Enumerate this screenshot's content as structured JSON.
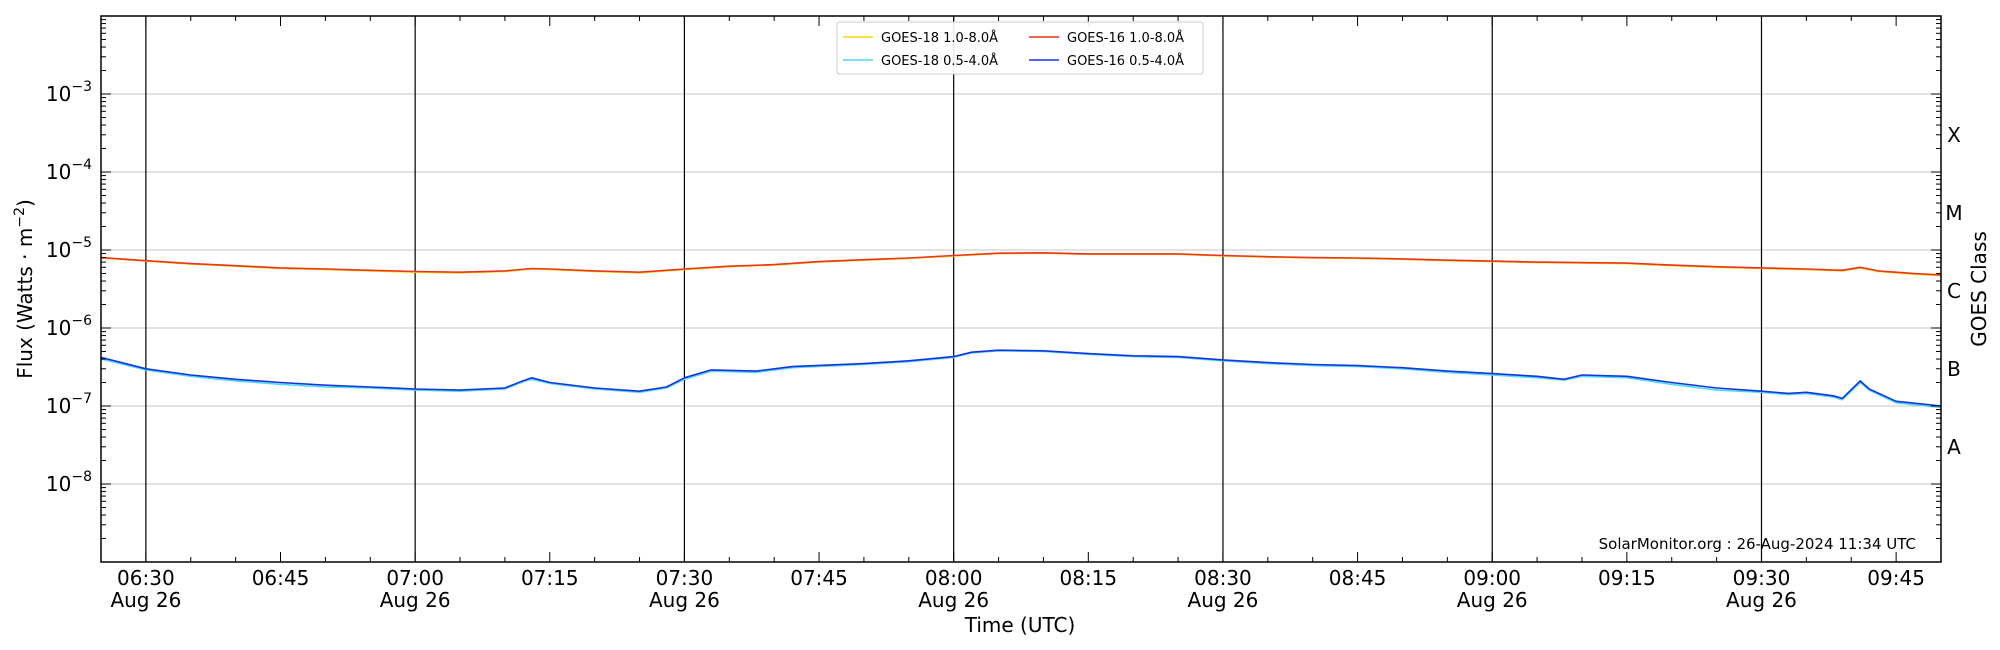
{
  "chart_data": {
    "type": "line",
    "xlabel": "Time (UTC)",
    "ylabel": "Flux (Watts · m",
    "ylabel_sup": "−2",
    "ylabel_close": ")",
    "right_label": "GOES Class",
    "y_scale": "log",
    "ylim": [
      1e-09,
      0.01
    ],
    "xlim": [
      "06:25",
      "09:50"
    ],
    "grid": "horizontal at decades; vertical lines at half-hours",
    "x_ticks": [
      {
        "time": "06:30",
        "label": "06:30",
        "sub": "Aug 26"
      },
      {
        "time": "06:45",
        "label": "06:45",
        "sub": ""
      },
      {
        "time": "07:00",
        "label": "07:00",
        "sub": "Aug 26"
      },
      {
        "time": "07:15",
        "label": "07:15",
        "sub": ""
      },
      {
        "time": "07:30",
        "label": "07:30",
        "sub": "Aug 26"
      },
      {
        "time": "07:45",
        "label": "07:45",
        "sub": ""
      },
      {
        "time": "08:00",
        "label": "08:00",
        "sub": "Aug 26"
      },
      {
        "time": "08:15",
        "label": "08:15",
        "sub": ""
      },
      {
        "time": "08:30",
        "label": "08:30",
        "sub": "Aug 26"
      },
      {
        "time": "08:45",
        "label": "08:45",
        "sub": ""
      },
      {
        "time": "09:00",
        "label": "09:00",
        "sub": "Aug 26"
      },
      {
        "time": "09:15",
        "label": "09:15",
        "sub": ""
      },
      {
        "time": "09:30",
        "label": "09:30",
        "sub": "Aug 26"
      },
      {
        "time": "09:45",
        "label": "09:45",
        "sub": ""
      }
    ],
    "vlines": [
      "06:30",
      "07:00",
      "07:30",
      "08:00",
      "08:30",
      "09:00",
      "09:30"
    ],
    "y_ticks": [
      {
        "value": 1e-08,
        "base": "10",
        "exp": "−8"
      },
      {
        "value": 1e-07,
        "base": "10",
        "exp": "−7"
      },
      {
        "value": 1e-06,
        "base": "10",
        "exp": "−6"
      },
      {
        "value": 1e-05,
        "base": "10",
        "exp": "−5"
      },
      {
        "value": 0.0001,
        "base": "10",
        "exp": "−4"
      },
      {
        "value": 0.001,
        "base": "10",
        "exp": "−3"
      }
    ],
    "goes_classes": [
      {
        "label": "A",
        "value": 3e-08
      },
      {
        "label": "B",
        "value": 3e-07
      },
      {
        "label": "C",
        "value": 3e-06
      },
      {
        "label": "M",
        "value": 3e-05
      },
      {
        "label": "X",
        "value": 0.0003
      }
    ],
    "legend": {
      "placement": "top-center",
      "columns": 2,
      "entries": [
        {
          "series": 0,
          "label": "GOES-18 1.0-8.0Å"
        },
        {
          "series": 2,
          "label": "GOES-18 0.5-4.0Å"
        },
        {
          "series": 1,
          "label": "GOES-16 1.0-8.0Å"
        },
        {
          "series": 3,
          "label": "GOES-16 0.5-4.0Å"
        }
      ]
    },
    "annotation": "SolarMonitor.org : 26-Aug-2024 11:34 UTC",
    "series": [
      {
        "name": "GOES-18 1.0-8.0Å",
        "color": "#ffd700",
        "points": [
          [
            "06:25",
            7.9e-06
          ],
          [
            "06:30",
            7.2e-06
          ],
          [
            "06:35",
            6.6e-06
          ],
          [
            "06:40",
            6.2e-06
          ],
          [
            "06:45",
            5.8e-06
          ],
          [
            "06:50",
            5.6e-06
          ],
          [
            "06:55",
            5.4e-06
          ],
          [
            "07:00",
            5.2e-06
          ],
          [
            "07:05",
            5.1e-06
          ],
          [
            "07:10",
            5.3e-06
          ],
          [
            "07:13",
            5.7e-06
          ],
          [
            "07:15",
            5.6e-06
          ],
          [
            "07:20",
            5.3e-06
          ],
          [
            "07:25",
            5.1e-06
          ],
          [
            "07:30",
            5.6e-06
          ],
          [
            "07:35",
            6.1e-06
          ],
          [
            "07:40",
            6.4e-06
          ],
          [
            "07:45",
            7e-06
          ],
          [
            "07:50",
            7.4e-06
          ],
          [
            "07:55",
            7.8e-06
          ],
          [
            "08:00",
            8.4e-06
          ],
          [
            "08:05",
            9e-06
          ],
          [
            "08:10",
            9.1e-06
          ],
          [
            "08:15",
            8.8e-06
          ],
          [
            "08:20",
            8.8e-06
          ],
          [
            "08:25",
            8.8e-06
          ],
          [
            "08:30",
            8.4e-06
          ],
          [
            "08:35",
            8.1e-06
          ],
          [
            "08:40",
            7.9e-06
          ],
          [
            "08:45",
            7.8e-06
          ],
          [
            "08:50",
            7.6e-06
          ],
          [
            "08:55",
            7.3e-06
          ],
          [
            "09:00",
            7.1e-06
          ],
          [
            "09:05",
            6.9e-06
          ],
          [
            "09:10",
            6.8e-06
          ],
          [
            "09:15",
            6.7e-06
          ],
          [
            "09:20",
            6.3e-06
          ],
          [
            "09:25",
            6e-06
          ],
          [
            "09:30",
            5.8e-06
          ],
          [
            "09:35",
            5.6e-06
          ],
          [
            "09:39",
            5.4e-06
          ],
          [
            "09:41",
            5.9e-06
          ],
          [
            "09:43",
            5.3e-06
          ],
          [
            "09:47",
            4.9e-06
          ],
          [
            "09:50",
            4.7e-06
          ]
        ]
      },
      {
        "name": "GOES-16 1.0-8.0Å",
        "color": "#e8351f",
        "points": [
          [
            "06:25",
            8e-06
          ],
          [
            "06:30",
            7.3e-06
          ],
          [
            "06:35",
            6.7e-06
          ],
          [
            "06:40",
            6.3e-06
          ],
          [
            "06:45",
            5.9e-06
          ],
          [
            "06:50",
            5.7e-06
          ],
          [
            "06:55",
            5.5e-06
          ],
          [
            "07:00",
            5.3e-06
          ],
          [
            "07:05",
            5.2e-06
          ],
          [
            "07:10",
            5.4e-06
          ],
          [
            "07:13",
            5.8e-06
          ],
          [
            "07:15",
            5.7e-06
          ],
          [
            "07:20",
            5.4e-06
          ],
          [
            "07:25",
            5.2e-06
          ],
          [
            "07:30",
            5.7e-06
          ],
          [
            "07:35",
            6.2e-06
          ],
          [
            "07:40",
            6.5e-06
          ],
          [
            "07:45",
            7.1e-06
          ],
          [
            "07:50",
            7.5e-06
          ],
          [
            "07:55",
            7.9e-06
          ],
          [
            "08:00",
            8.5e-06
          ],
          [
            "08:05",
            9.1e-06
          ],
          [
            "08:10",
            9.2e-06
          ],
          [
            "08:15",
            8.9e-06
          ],
          [
            "08:20",
            8.9e-06
          ],
          [
            "08:25",
            8.9e-06
          ],
          [
            "08:30",
            8.5e-06
          ],
          [
            "08:35",
            8.2e-06
          ],
          [
            "08:40",
            8e-06
          ],
          [
            "08:45",
            7.9e-06
          ],
          [
            "08:50",
            7.7e-06
          ],
          [
            "08:55",
            7.4e-06
          ],
          [
            "09:00",
            7.2e-06
          ],
          [
            "09:05",
            7e-06
          ],
          [
            "09:10",
            6.9e-06
          ],
          [
            "09:15",
            6.8e-06
          ],
          [
            "09:20",
            6.4e-06
          ],
          [
            "09:25",
            6.1e-06
          ],
          [
            "09:30",
            5.9e-06
          ],
          [
            "09:35",
            5.7e-06
          ],
          [
            "09:39",
            5.5e-06
          ],
          [
            "09:41",
            6e-06
          ],
          [
            "09:43",
            5.4e-06
          ],
          [
            "09:47",
            5e-06
          ],
          [
            "09:50",
            4.8e-06
          ]
        ]
      },
      {
        "name": "GOES-18 0.5-4.0Å",
        "color": "#4fd9f0",
        "points": [
          [
            "06:25",
            4e-07
          ],
          [
            "06:30",
            2.9e-07
          ],
          [
            "06:35",
            2.4e-07
          ],
          [
            "06:40",
            2.1e-07
          ],
          [
            "06:45",
            1.9e-07
          ],
          [
            "06:50",
            1.75e-07
          ],
          [
            "06:55",
            1.7e-07
          ],
          [
            "07:00",
            1.6e-07
          ],
          [
            "07:05",
            1.55e-07
          ],
          [
            "07:10",
            1.65e-07
          ],
          [
            "07:12",
            2.05e-07
          ],
          [
            "07:13",
            2.2e-07
          ],
          [
            "07:15",
            1.95e-07
          ],
          [
            "07:20",
            1.65e-07
          ],
          [
            "07:25",
            1.5e-07
          ],
          [
            "07:28",
            1.7e-07
          ],
          [
            "07:30",
            2.2e-07
          ],
          [
            "07:33",
            2.8e-07
          ],
          [
            "07:38",
            2.7e-07
          ],
          [
            "07:42",
            3.1e-07
          ],
          [
            "07:50",
            3.4e-07
          ],
          [
            "07:55",
            3.7e-07
          ],
          [
            "08:00",
            4.2e-07
          ],
          [
            "08:02",
            4.8e-07
          ],
          [
            "08:05",
            5.1e-07
          ],
          [
            "08:10",
            5e-07
          ],
          [
            "08:15",
            4.6e-07
          ],
          [
            "08:20",
            4.3e-07
          ],
          [
            "08:25",
            4.2e-07
          ],
          [
            "08:30",
            3.8e-07
          ],
          [
            "08:35",
            3.5e-07
          ],
          [
            "08:40",
            3.3e-07
          ],
          [
            "08:45",
            3.2e-07
          ],
          [
            "08:50",
            3e-07
          ],
          [
            "08:55",
            2.7e-07
          ],
          [
            "09:00",
            2.5e-07
          ],
          [
            "09:05",
            2.3e-07
          ],
          [
            "09:08",
            2.15e-07
          ],
          [
            "09:10",
            2.4e-07
          ],
          [
            "09:15",
            2.3e-07
          ],
          [
            "09:20",
            1.9e-07
          ],
          [
            "09:25",
            1.6e-07
          ],
          [
            "09:30",
            1.5e-07
          ],
          [
            "09:33",
            1.4e-07
          ],
          [
            "09:35",
            1.45e-07
          ],
          [
            "09:38",
            1.3e-07
          ],
          [
            "09:39",
            1.2e-07
          ],
          [
            "09:41",
            2e-07
          ],
          [
            "09:42",
            1.6e-07
          ],
          [
            "09:45",
            1.1e-07
          ],
          [
            "09:50",
            9.6e-08
          ]
        ]
      },
      {
        "name": "GOES-16 0.5-4.0Å",
        "color": "#1434e0",
        "points": [
          [
            "06:25",
            4.2e-07
          ],
          [
            "06:30",
            3e-07
          ],
          [
            "06:35",
            2.5e-07
          ],
          [
            "06:40",
            2.2e-07
          ],
          [
            "06:45",
            2e-07
          ],
          [
            "06:50",
            1.85e-07
          ],
          [
            "06:55",
            1.75e-07
          ],
          [
            "07:00",
            1.65e-07
          ],
          [
            "07:05",
            1.6e-07
          ],
          [
            "07:10",
            1.7e-07
          ],
          [
            "07:12",
            2.1e-07
          ],
          [
            "07:13",
            2.3e-07
          ],
          [
            "07:15",
            2e-07
          ],
          [
            "07:20",
            1.7e-07
          ],
          [
            "07:25",
            1.55e-07
          ],
          [
            "07:28",
            1.75e-07
          ],
          [
            "07:30",
            2.3e-07
          ],
          [
            "07:33",
            2.9e-07
          ],
          [
            "07:38",
            2.8e-07
          ],
          [
            "07:42",
            3.2e-07
          ],
          [
            "07:50",
            3.5e-07
          ],
          [
            "07:55",
            3.8e-07
          ],
          [
            "08:00",
            4.3e-07
          ],
          [
            "08:02",
            4.9e-07
          ],
          [
            "08:05",
            5.2e-07
          ],
          [
            "08:10",
            5.1e-07
          ],
          [
            "08:15",
            4.7e-07
          ],
          [
            "08:20",
            4.4e-07
          ],
          [
            "08:25",
            4.3e-07
          ],
          [
            "08:30",
            3.9e-07
          ],
          [
            "08:35",
            3.6e-07
          ],
          [
            "08:40",
            3.4e-07
          ],
          [
            "08:45",
            3.3e-07
          ],
          [
            "08:50",
            3.1e-07
          ],
          [
            "08:55",
            2.8e-07
          ],
          [
            "09:00",
            2.6e-07
          ],
          [
            "09:05",
            2.4e-07
          ],
          [
            "09:08",
            2.2e-07
          ],
          [
            "09:10",
            2.5e-07
          ],
          [
            "09:15",
            2.4e-07
          ],
          [
            "09:20",
            2e-07
          ],
          [
            "09:25",
            1.7e-07
          ],
          [
            "09:30",
            1.55e-07
          ],
          [
            "09:33",
            1.45e-07
          ],
          [
            "09:35",
            1.5e-07
          ],
          [
            "09:38",
            1.35e-07
          ],
          [
            "09:39",
            1.25e-07
          ],
          [
            "09:41",
            2.1e-07
          ],
          [
            "09:42",
            1.65e-07
          ],
          [
            "09:45",
            1.15e-07
          ],
          [
            "09:50",
            1e-07
          ]
        ]
      }
    ]
  }
}
